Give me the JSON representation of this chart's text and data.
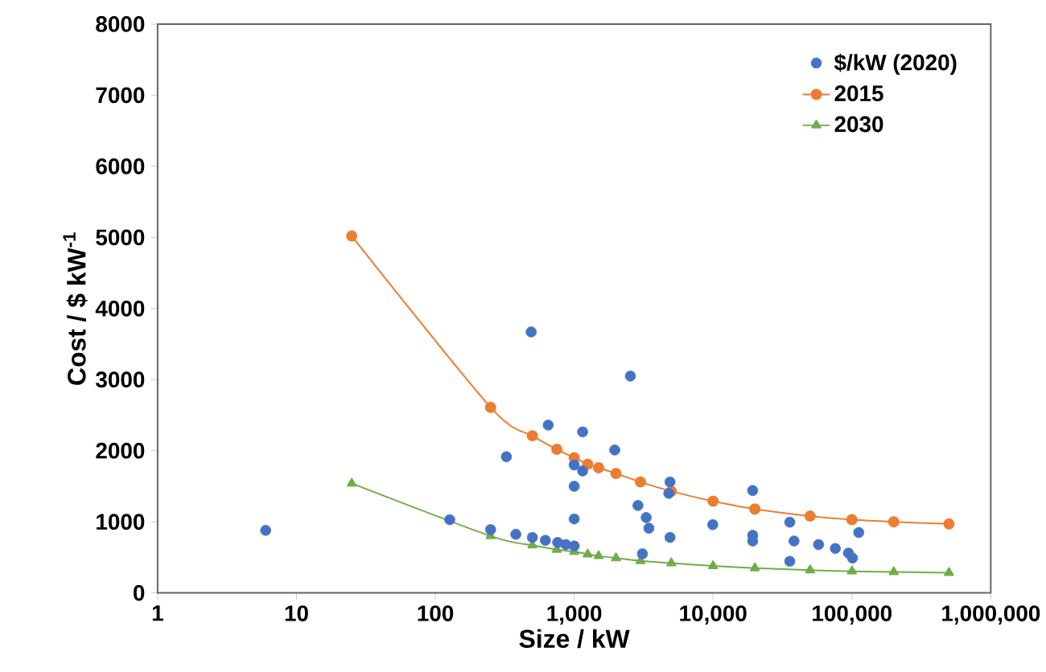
{
  "chart_data": {
    "type": "scatter",
    "xlabel": "Size / kW",
    "ylabel": "Cost / $ kW$^{-1}$",
    "log": "x",
    "grid": false,
    "legend": "top right",
    "xlim": [
      1,
      1000000
    ],
    "ylim": [
      0,
      8000
    ],
    "xticks": [
      1,
      10,
      100,
      {
        "value": 1000,
        "label": "1,000"
      },
      {
        "value": 10000,
        "label": "10,000"
      },
      {
        "value": 100000,
        "label": "100,000"
      },
      {
        "value": 1000000,
        "label": "1,000,000"
      }
    ],
    "yticks": [
      0,
      1000,
      2000,
      3000,
      4000,
      5000,
      6000,
      7000,
      8000
    ],
    "series": [
      {
        "name": "$/kW (2020)",
        "marker": "circle",
        "color": "#4472c4",
        "x": [
          6,
          127,
          250,
          325,
          380,
          490,
          500,
          620,
          650,
          760,
          870,
          1000,
          1000,
          1000,
          1000,
          1150,
          1150,
          1960,
          2540,
          2880,
          3100,
          3300,
          3450,
          4800,
          4900,
          4900,
          9950,
          19300,
          19300,
          19300,
          35700,
          35700,
          38300,
          57500,
          76000,
          94400,
          101000,
          112000
        ],
        "values": [
          880,
          1030,
          890,
          1915,
          825,
          3670,
          780,
          740,
          2360,
          710,
          680,
          660,
          1800,
          1500,
          1040,
          2265,
          1715,
          2010,
          3050,
          1230,
          550,
          1060,
          910,
          1400,
          1560,
          780,
          960,
          1440,
          810,
          730,
          995,
          445,
          730,
          680,
          625,
          560,
          490,
          850
        ]
      },
      {
        "name": "2015",
        "type": "line",
        "marker": "circle",
        "color": "#ed7d31",
        "x": [
          25,
          250,
          500,
          750,
          1000,
          1250,
          1500,
          2000,
          3000,
          5000,
          10000,
          20000,
          50000,
          100000,
          200000,
          500000
        ],
        "values": [
          5020,
          2610,
          2210,
          2020,
          1900,
          1810,
          1760,
          1680,
          1560,
          1430,
          1290,
          1180,
          1080,
          1030,
          1000,
          970
        ]
      },
      {
        "name": "2030",
        "type": "line",
        "marker": "triangle",
        "color": "#70ad47",
        "x": [
          25,
          250,
          500,
          750,
          1000,
          1250,
          1500,
          2000,
          3000,
          5000,
          10000,
          20000,
          50000,
          100000,
          200000,
          500000
        ],
        "values": [
          1540,
          800,
          670,
          610,
          580,
          545,
          520,
          490,
          450,
          420,
          380,
          350,
          320,
          305,
          295,
          285
        ]
      }
    ]
  }
}
